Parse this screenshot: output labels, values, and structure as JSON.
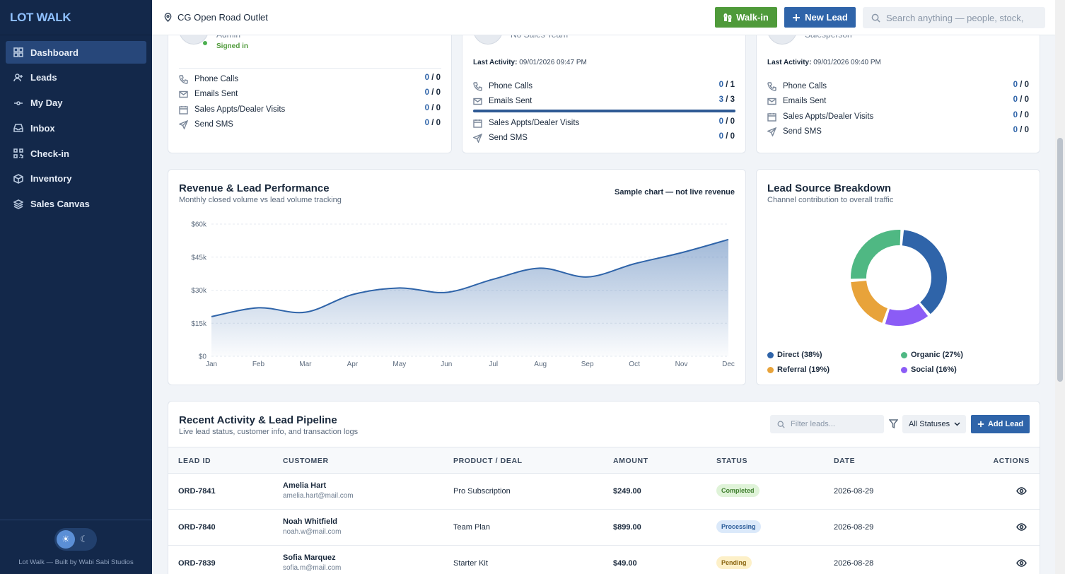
{
  "app": {
    "brand": "LOT WALK",
    "credit": "Lot Walk — Built by Wabi Sabi Studios"
  },
  "sidebar": {
    "items": [
      {
        "label": "Dashboard",
        "icon": "dashboard-icon",
        "active": true
      },
      {
        "label": "Leads",
        "icon": "user-plus-icon"
      },
      {
        "label": "My Day",
        "icon": "timeline-icon"
      },
      {
        "label": "Inbox",
        "icon": "inbox-icon"
      },
      {
        "label": "Check-in",
        "icon": "qr-icon"
      },
      {
        "label": "Inventory",
        "icon": "box-icon"
      },
      {
        "label": "Sales Canvas",
        "icon": "layers-icon"
      }
    ]
  },
  "topbar": {
    "location": "CG Open Road Outlet",
    "walkin_label": "Walk-in",
    "new_lead_label": "New Lead",
    "search_placeholder": "Search anything — people, stock,"
  },
  "staff_cards": [
    {
      "name": "Admin",
      "status": "Signed in",
      "stats": [
        {
          "label": "Phone Calls",
          "done": "0",
          "total": "0",
          "icon": "phone-icon"
        },
        {
          "label": "Emails Sent",
          "done": "0",
          "total": "0",
          "icon": "mail-icon"
        },
        {
          "label": "Sales Appts/Dealer Visits",
          "done": "0",
          "total": "0",
          "icon": "calendar-icon"
        },
        {
          "label": "Send SMS",
          "done": "0",
          "total": "0",
          "icon": "send-icon"
        }
      ]
    },
    {
      "name": "No Sales Team",
      "last_activity_label": "Last Activity:",
      "last_activity": "09/01/2026 09:47 PM",
      "stats": [
        {
          "label": "Phone Calls",
          "done": "0",
          "total": "1",
          "icon": "phone-icon"
        },
        {
          "label": "Emails Sent",
          "done": "3",
          "total": "3",
          "icon": "mail-icon",
          "progress": 1.0
        },
        {
          "label": "Sales Appts/Dealer Visits",
          "done": "0",
          "total": "0",
          "icon": "calendar-icon"
        },
        {
          "label": "Send SMS",
          "done": "0",
          "total": "0",
          "icon": "send-icon"
        }
      ]
    },
    {
      "name": "Salesperson",
      "last_activity_label": "Last Activity:",
      "last_activity": "09/01/2026 09:40 PM",
      "stats": [
        {
          "label": "Phone Calls",
          "done": "0",
          "total": "0",
          "icon": "phone-icon"
        },
        {
          "label": "Emails Sent",
          "done": "0",
          "total": "0",
          "icon": "mail-icon"
        },
        {
          "label": "Sales Appts/Dealer Visits",
          "done": "0",
          "total": "0",
          "icon": "calendar-icon"
        },
        {
          "label": "Send SMS",
          "done": "0",
          "total": "0",
          "icon": "send-icon"
        }
      ]
    }
  ],
  "revenue_card": {
    "title": "Revenue & Lead Performance",
    "subtitle": "Monthly closed volume vs lead volume tracking",
    "note": "Sample chart — not live revenue"
  },
  "lead_source_card": {
    "title": "Lead Source Breakdown",
    "subtitle": "Channel contribution to overall traffic"
  },
  "chart_data": [
    {
      "type": "area",
      "categories": [
        "Jan",
        "Feb",
        "Mar",
        "Apr",
        "May",
        "Jun",
        "Jul",
        "Aug",
        "Sep",
        "Oct",
        "Nov",
        "Dec"
      ],
      "values": [
        18000,
        22000,
        20000,
        28000,
        31000,
        29000,
        35000,
        40000,
        36000,
        42000,
        47000,
        53000
      ],
      "y_ticks": [
        "$0",
        "$15k",
        "$30k",
        "$45k",
        "$60k"
      ],
      "ylim": [
        0,
        60000
      ],
      "grid": true,
      "color": "#2f64a9"
    },
    {
      "type": "pie",
      "style": "donut",
      "labels": [
        "Direct (38%)",
        "Organic (27%)",
        "Referral (19%)",
        "Social (16%)"
      ],
      "values": [
        38,
        27,
        19,
        16
      ],
      "colors": [
        "#2f64a9",
        "#4fb883",
        "#e8a33a",
        "#8b5cf6"
      ],
      "slice_order": [
        "Direct",
        "Social",
        "Referral",
        "Organic"
      ]
    }
  ],
  "pipeline": {
    "title": "Recent Activity & Lead Pipeline",
    "subtitle": "Live lead status, customer info, and transaction logs",
    "filter_placeholder": "Filter leads...",
    "status_filter": "All Statuses",
    "add_label": "Add Lead",
    "columns": [
      "LEAD ID",
      "CUSTOMER",
      "PRODUCT / DEAL",
      "AMOUNT",
      "STATUS",
      "DATE",
      "ACTIONS"
    ],
    "rows": [
      {
        "id": "ORD-7841",
        "name": "Amelia Hart",
        "email": "amelia.hart@mail.com",
        "product": "Pro Subscription",
        "amount": "$249.00",
        "status": "Completed",
        "date": "2026-08-29"
      },
      {
        "id": "ORD-7840",
        "name": "Noah Whitfield",
        "email": "noah.w@mail.com",
        "product": "Team Plan",
        "amount": "$899.00",
        "status": "Processing",
        "date": "2026-08-29"
      },
      {
        "id": "ORD-7839",
        "name": "Sofia Marquez",
        "email": "sofia.m@mail.com",
        "product": "Starter Kit",
        "amount": "$49.00",
        "status": "Pending",
        "date": "2026-08-28"
      }
    ],
    "status_colors": {
      "Completed": {
        "bg": "#dff3d8",
        "fg": "#3f7f2e"
      },
      "Processing": {
        "bg": "#dbe9fa",
        "fg": "#2a5b98"
      },
      "Pending": {
        "bg": "#fdf0c8",
        "fg": "#8a6510"
      }
    }
  }
}
